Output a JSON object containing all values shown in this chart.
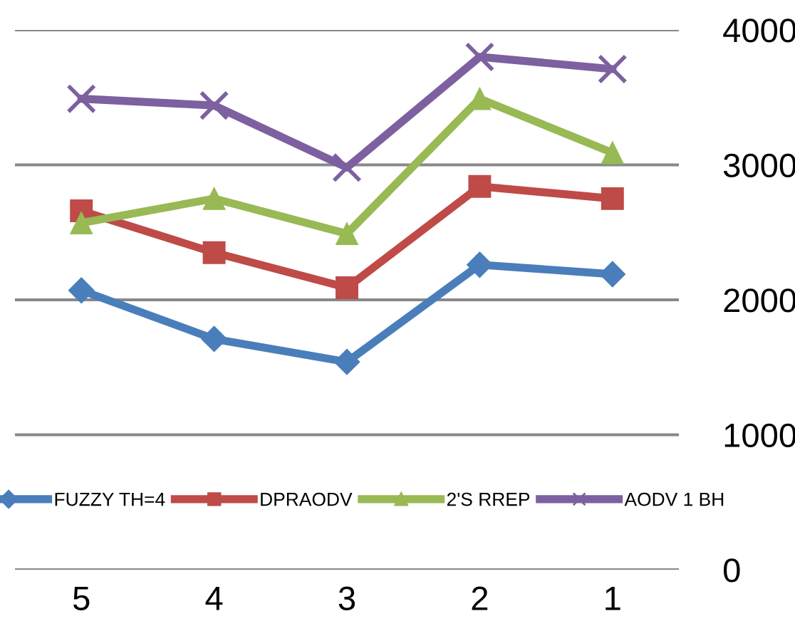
{
  "chart_data": {
    "type": "line",
    "categories": [
      "5",
      "4",
      "3",
      "2",
      "1"
    ],
    "series": [
      {
        "name": "FUZZY TH=4",
        "color": "#4a7ebb",
        "marker": "diamond",
        "values": [
          2070,
          1710,
          1540,
          2260,
          2190
        ]
      },
      {
        "name": "DPRAODV",
        "color": "#be4b48",
        "marker": "square",
        "values": [
          2660,
          2350,
          2090,
          2840,
          2750
        ]
      },
      {
        "name": "2'S RREP",
        "color": "#98b954",
        "marker": "triangle",
        "values": [
          2570,
          2750,
          2490,
          3490,
          3090
        ]
      },
      {
        "name": "AODV 1 BH",
        "color": "#7d60a0",
        "marker": "cross",
        "values": [
          3490,
          3440,
          2980,
          3800,
          3710
        ]
      }
    ],
    "ylim": [
      0,
      4000
    ],
    "yticks": [
      0,
      1000,
      2000,
      3000,
      4000
    ],
    "grid": "y",
    "legend": "bottom",
    "line_style": "solid"
  }
}
